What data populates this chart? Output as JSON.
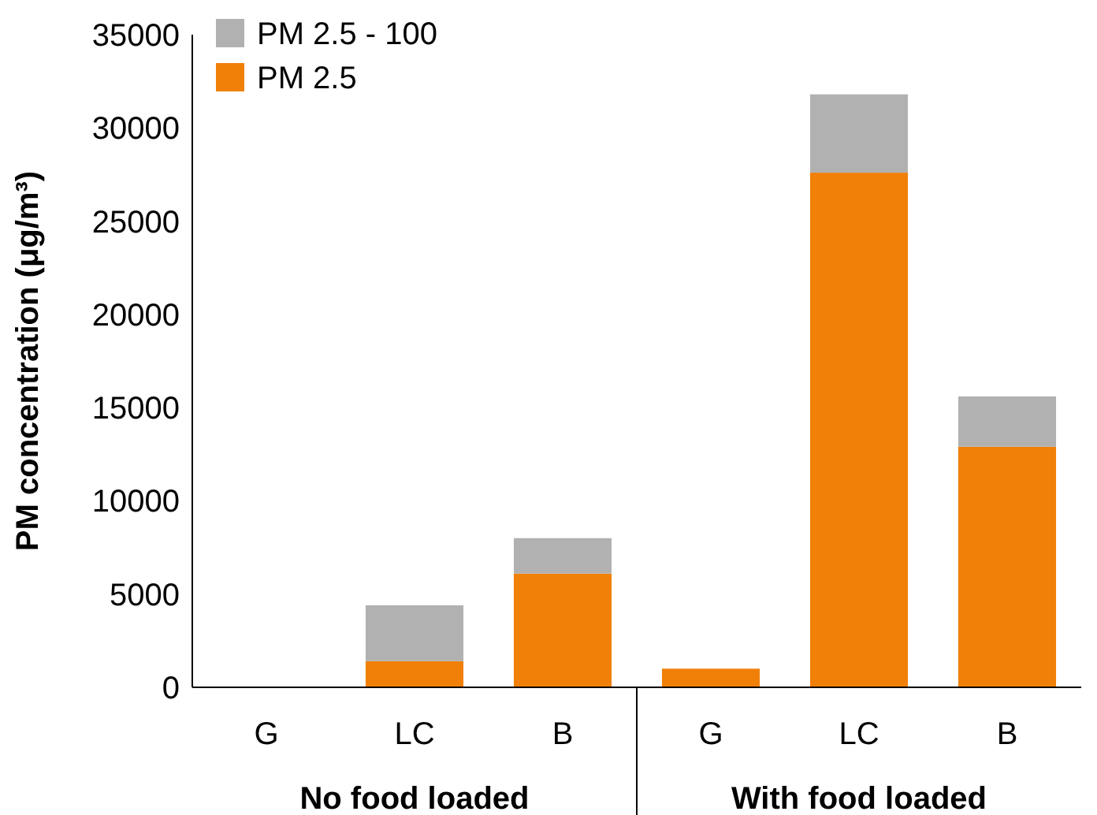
{
  "chart_data": {
    "type": "bar",
    "ylabel": "PM concentration (μg/m³)",
    "categories": [
      "G",
      "LC",
      "B",
      "G",
      "LC",
      "B"
    ],
    "stacked": true,
    "series": [
      {
        "name": "PM 2.5",
        "color": "#f08008",
        "values": [
          0,
          1400,
          6100,
          1000,
          27600,
          12900
        ]
      },
      {
        "name": "PM 2.5 - 100",
        "color": "#b1b1b1",
        "values": [
          0,
          3000,
          1900,
          0,
          4200,
          2700
        ]
      }
    ],
    "ylim": [
      0,
      35000
    ],
    "yticks": [
      0,
      5000,
      10000,
      15000,
      20000,
      25000,
      30000,
      35000
    ],
    "grid": false,
    "legend": "top left",
    "annotations": [
      "No food loaded",
      "With food loaded"
    ]
  }
}
